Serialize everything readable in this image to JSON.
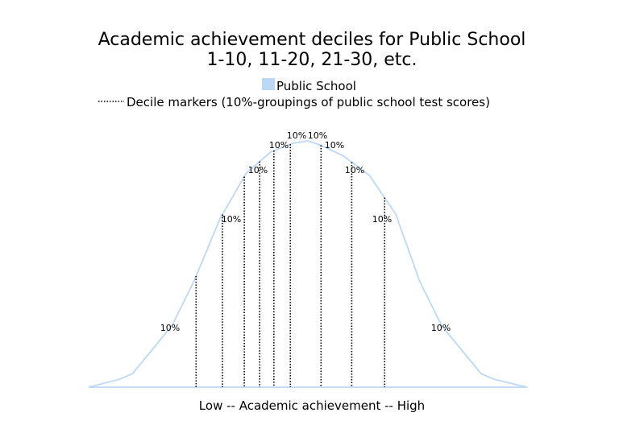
{
  "chart_data": {
    "type": "area",
    "title": [
      "Academic achievement deciles for Public School",
      "1-10, 11-20, 21-30, etc."
    ],
    "legend": {
      "placement": "top-center",
      "entries": [
        {
          "label": "Public School",
          "marker": "swatch",
          "color": "#bcd8f7"
        },
        {
          "label": "Decile markers (10%-groupings of public school test scores)",
          "marker": "dotted-line",
          "color": "#000000"
        }
      ]
    },
    "xlabel": "Low  --  Academic achievement  --  High",
    "ylabel": "",
    "grid": false,
    "series": [
      {
        "name": "Public School",
        "color": "#bcd8f7",
        "x": [
          0,
          0.14,
          0.2,
          0.38,
          0.48,
          0.6,
          0.72,
          0.83,
          0.93,
          1.0,
          1.06,
          1.16,
          1.28,
          1.4,
          1.51,
          1.61,
          1.79,
          1.85,
          2.0
        ],
        "y": [
          0,
          0.032,
          0.055,
          0.25,
          0.43,
          0.686,
          0.87,
          0.955,
          0.99,
          1.0,
          0.982,
          0.94,
          0.86,
          0.704,
          0.43,
          0.25,
          0.055,
          0.032,
          0
        ]
      }
    ],
    "decile_markers": {
      "x": [
        0.49,
        0.61,
        0.71,
        0.78,
        0.845,
        0.92,
        1.06,
        1.2,
        1.35
      ],
      "label": "10%"
    },
    "decile_labels": [
      "10%",
      "10%",
      "10%",
      "10%",
      "10%",
      "10%",
      "10%",
      "10%",
      "10%",
      "10%"
    ]
  }
}
